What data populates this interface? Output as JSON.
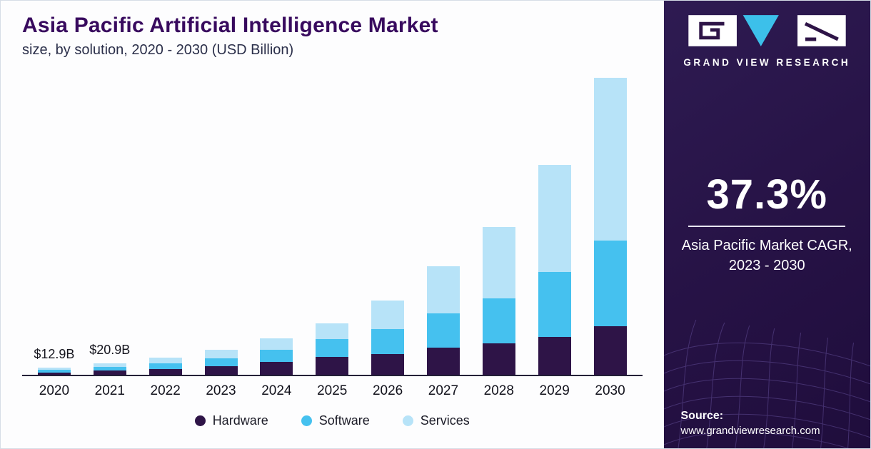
{
  "chart_data": {
    "type": "bar",
    "stacked": true,
    "title": "Asia Pacific Artificial Intelligence Market",
    "subtitle": "size, by solution, 2020 - 2030 (USD Billion)",
    "xlabel": "",
    "ylabel": "",
    "unit": "USD Billion",
    "grid": false,
    "legend_position": "bottom",
    "ylim": [
      0,
      560
    ],
    "categories": [
      "2020",
      "2021",
      "2022",
      "2023",
      "2024",
      "2025",
      "2026",
      "2027",
      "2028",
      "2029",
      "2030"
    ],
    "series": [
      {
        "name": "Hardware",
        "color": "#2e1447",
        "values": [
          4.0,
          7.5,
          10,
          15,
          23,
          32,
          38,
          49,
          57,
          68,
          88
        ]
      },
      {
        "name": "Software",
        "color": "#45c1ef",
        "values": [
          5.0,
          7.0,
          11,
          14,
          22,
          32,
          45,
          62,
          81,
          117,
          154
        ]
      },
      {
        "name": "Services",
        "color": "#b7e3f8",
        "values": [
          3.9,
          6.4,
          10,
          16,
          21,
          28,
          51,
          84,
          129,
          194,
          293
        ]
      }
    ],
    "annotations": [
      {
        "category": "2020",
        "label": "$12.9B"
      },
      {
        "category": "2021",
        "label": "$20.9B"
      }
    ]
  },
  "sidebar": {
    "brand": "GRAND VIEW RESEARCH",
    "stat": {
      "value": "37.3%",
      "caption_line1": "Asia Pacific Market CAGR,",
      "caption_line2": "2023 - 2030"
    },
    "source": {
      "label": "Source:",
      "url": "www.grandviewresearch.com"
    }
  },
  "colors": {
    "title_purple": "#380a5e",
    "sidebar_background": "#261245",
    "logo_teal": "#3cc0ea",
    "logo_tile_white": "#ffffff",
    "axis_line": "#242038"
  }
}
